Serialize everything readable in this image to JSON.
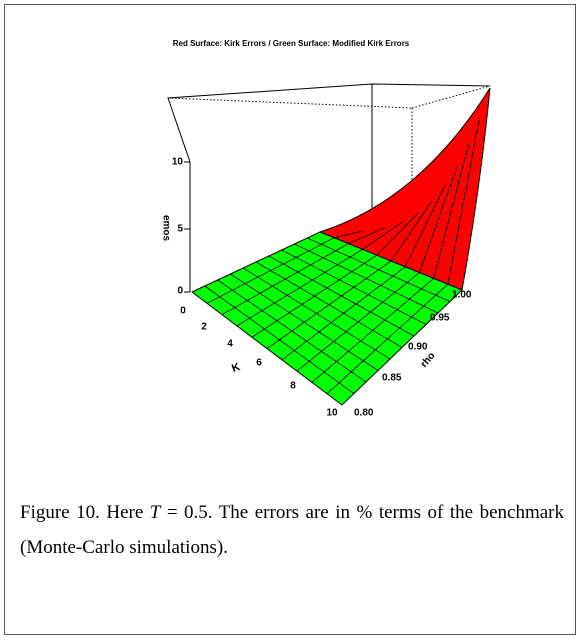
{
  "figure": {
    "title": "Red Surface: Kirk Errors / Green Surface: Modified Kirk Errors",
    "z_label": "emos",
    "x_label": "K",
    "y_label": "rho",
    "z_ticks": [
      "0",
      "5",
      "10"
    ],
    "x_ticks": [
      "0",
      "2",
      "4",
      "6",
      "8",
      "10"
    ],
    "y_ticks": [
      "0.80",
      "0.85",
      "0.90",
      "0.95",
      "1.00"
    ]
  },
  "caption": {
    "lead": "Figure 10. Here ",
    "symbol": "T",
    "text": " = 0.5. The errors are in % terms of the benchmark (Monte-Carlo simulations)."
  }
}
